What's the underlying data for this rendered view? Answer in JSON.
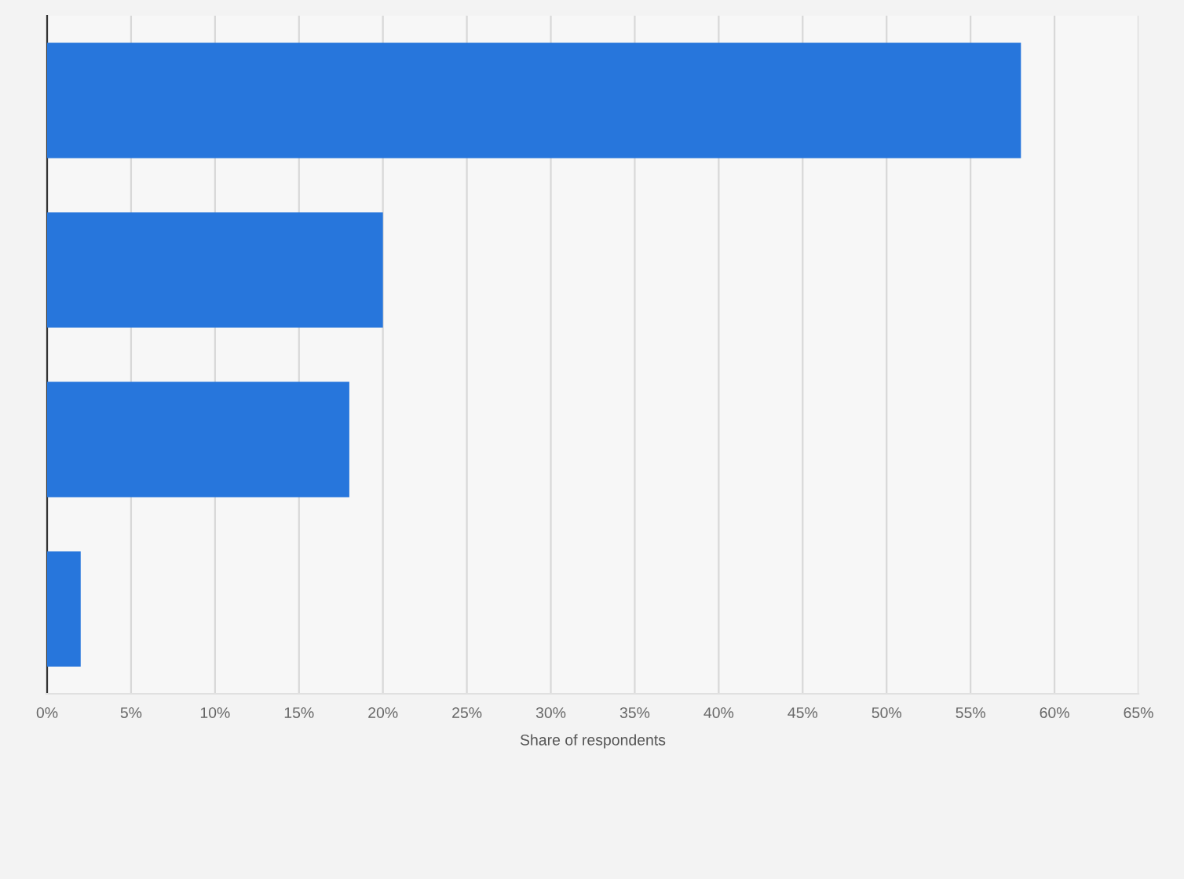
{
  "chart_data": {
    "type": "bar",
    "orientation": "horizontal",
    "categories": [
      null,
      null,
      null,
      null
    ],
    "values": [
      58,
      20,
      18,
      2
    ],
    "color": "#2776dc",
    "xlim": [
      0,
      65
    ],
    "xticks": [
      {
        "value": 0,
        "label": "0%"
      },
      {
        "value": 5,
        "label": "5%"
      },
      {
        "value": 10,
        "label": "10%"
      },
      {
        "value": 15,
        "label": "15%"
      },
      {
        "value": 20,
        "label": "20%"
      },
      {
        "value": 25,
        "label": "25%"
      },
      {
        "value": 30,
        "label": "30%"
      },
      {
        "value": 35,
        "label": "35%"
      },
      {
        "value": 40,
        "label": "40%"
      },
      {
        "value": 45,
        "label": "45%"
      },
      {
        "value": 50,
        "label": "50%"
      },
      {
        "value": 55,
        "label": "55%"
      },
      {
        "value": 60,
        "label": "60%"
      },
      {
        "value": 65,
        "label": "65%"
      }
    ],
    "xlabel": "Share of respondents",
    "grid": "x",
    "legend": false
  }
}
